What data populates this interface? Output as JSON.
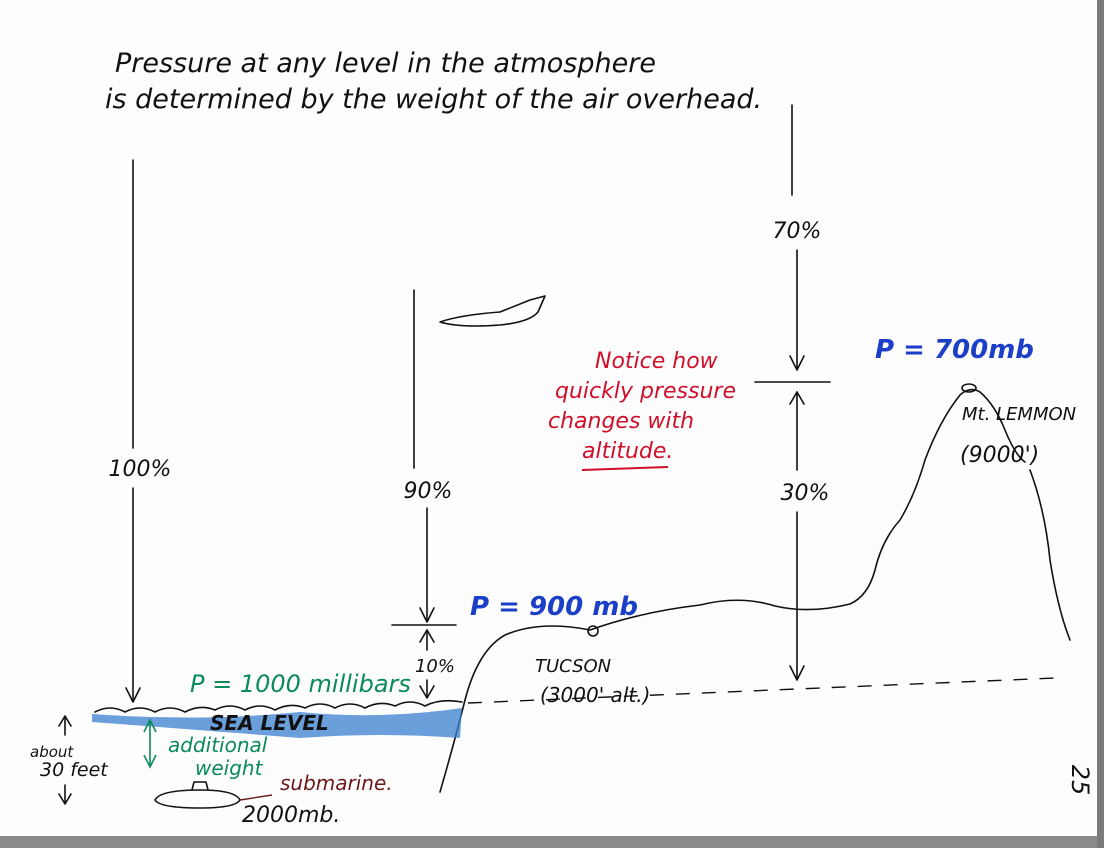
{
  "title": [
    "Pressure at any level in the atmosphere",
    "is determined by the weight of the air overhead."
  ],
  "percentages": {
    "full": "100%",
    "above_tucson": "90%",
    "below_tucson": "10%",
    "above_lemmon": "70%",
    "below_lemmon": "30%"
  },
  "pressures": {
    "sea_level": "P = 1000 millibars",
    "tucson": "P = 900 mb",
    "mt_lemmon": "P = 700mb",
    "submarine": "2000mb."
  },
  "places": {
    "sea_level": "SEA LEVEL",
    "tucson": "TUCSON",
    "tucson_alt": "(3000' alt.)",
    "mt_lemmon": "Mt. LEMMON",
    "mt_lemmon_alt": "(9000')",
    "submarine": "submarine."
  },
  "note": [
    "Notice how",
    "quickly pressure",
    "changes with",
    "altitude."
  ],
  "depth": {
    "about": "about",
    "feet": "30 feet",
    "additional": "additional",
    "weight": "weight"
  },
  "page_number": "25"
}
